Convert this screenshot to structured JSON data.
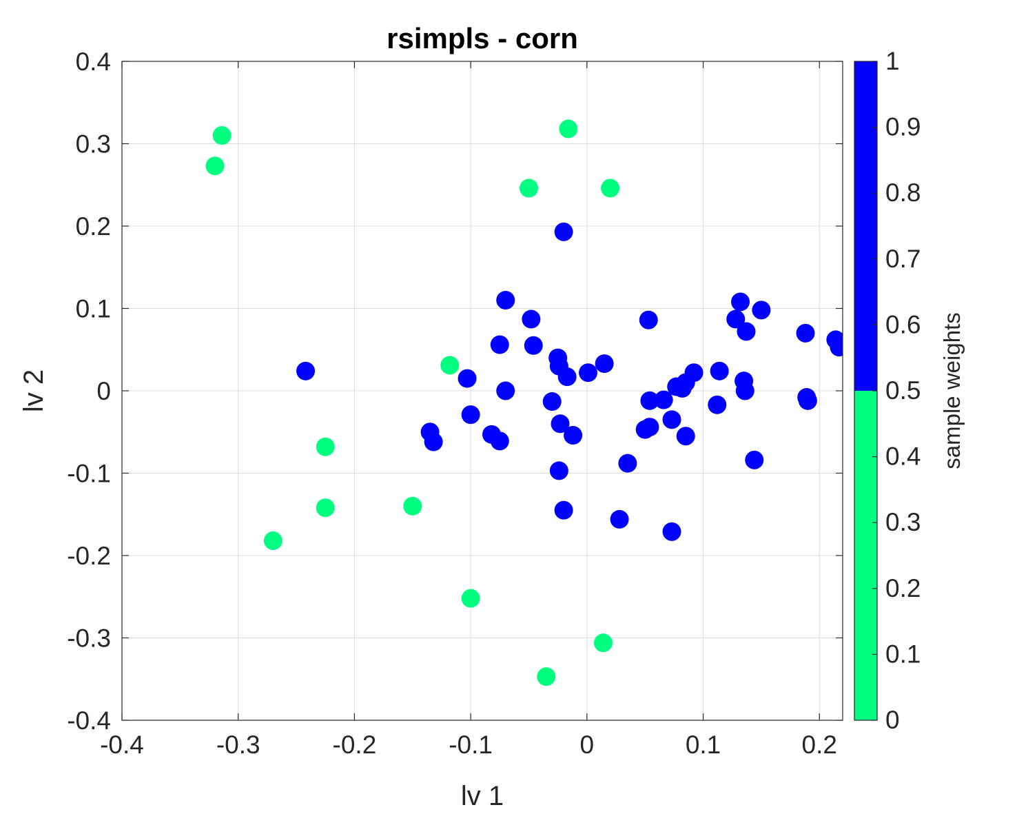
{
  "chart_data": {
    "type": "scatter",
    "title": "rsimpls - corn",
    "xlabel": "lv 1",
    "ylabel": "lv 2",
    "xlim": [
      -0.4,
      0.22
    ],
    "ylim": [
      -0.4,
      0.4
    ],
    "xticks": [
      -0.4,
      -0.3,
      -0.2,
      -0.1,
      0,
      0.1,
      0.2
    ],
    "yticks": [
      -0.4,
      -0.3,
      -0.2,
      -0.1,
      0,
      0.1,
      0.2,
      0.3,
      0.4
    ],
    "xtick_labels": [
      "-0.4",
      "-0.3",
      "-0.2",
      "-0.1",
      "0",
      "0.1",
      "0.2"
    ],
    "ytick_labels": [
      "-0.4",
      "-0.3",
      "-0.2",
      "-0.1",
      "0",
      "0.1",
      "0.2",
      "0.3",
      "0.4"
    ],
    "grid": true,
    "colorbar": {
      "label": "sample weights",
      "range": [
        0,
        1
      ],
      "ticks": [
        0,
        0.1,
        0.2,
        0.3,
        0.4,
        0.5,
        0.6,
        0.7,
        0.8,
        0.9,
        1
      ],
      "tick_labels": [
        "0",
        "0.1",
        "0.2",
        "0.3",
        "0.4",
        "0.5",
        "0.6",
        "0.7",
        "0.8",
        "0.9",
        "1"
      ],
      "segments": [
        {
          "from": 0,
          "to": 0.5,
          "color": "#00ff80"
        },
        {
          "from": 0.5,
          "to": 1,
          "color": "#0000ff"
        }
      ]
    },
    "colors": {
      "weight_0": "#00ff80",
      "weight_1": "#0000ff"
    },
    "points": [
      {
        "x": -0.32,
        "y": 0.273,
        "w": 0
      },
      {
        "x": -0.314,
        "y": 0.31,
        "w": 0
      },
      {
        "x": -0.016,
        "y": 0.318,
        "w": 0
      },
      {
        "x": -0.05,
        "y": 0.246,
        "w": 0
      },
      {
        "x": 0.02,
        "y": 0.246,
        "w": 0
      },
      {
        "x": -0.118,
        "y": 0.031,
        "w": 0
      },
      {
        "x": -0.225,
        "y": -0.068,
        "w": 0
      },
      {
        "x": -0.225,
        "y": -0.142,
        "w": 0
      },
      {
        "x": -0.15,
        "y": -0.14,
        "w": 0
      },
      {
        "x": -0.27,
        "y": -0.182,
        "w": 0
      },
      {
        "x": -0.1,
        "y": -0.252,
        "w": 0
      },
      {
        "x": 0.014,
        "y": -0.306,
        "w": 0
      },
      {
        "x": -0.035,
        "y": -0.347,
        "w": 0
      },
      {
        "x": -0.02,
        "y": 0.193,
        "w": 1
      },
      {
        "x": -0.242,
        "y": 0.024,
        "w": 1
      },
      {
        "x": -0.07,
        "y": 0.11,
        "w": 1
      },
      {
        "x": -0.048,
        "y": 0.087,
        "w": 1
      },
      {
        "x": -0.075,
        "y": 0.056,
        "w": 1
      },
      {
        "x": -0.046,
        "y": 0.055,
        "w": 1
      },
      {
        "x": -0.025,
        "y": 0.04,
        "w": 1
      },
      {
        "x": -0.024,
        "y": 0.03,
        "w": 1
      },
      {
        "x": -0.017,
        "y": 0.017,
        "w": 1
      },
      {
        "x": 0.001,
        "y": 0.022,
        "w": 1
      },
      {
        "x": 0.015,
        "y": 0.033,
        "w": 1
      },
      {
        "x": -0.103,
        "y": 0.015,
        "w": 1
      },
      {
        "x": -0.07,
        "y": 0.0,
        "w": 1
      },
      {
        "x": -0.1,
        "y": -0.029,
        "w": 1
      },
      {
        "x": -0.135,
        "y": -0.05,
        "w": 1
      },
      {
        "x": -0.132,
        "y": -0.062,
        "w": 1
      },
      {
        "x": -0.082,
        "y": -0.053,
        "w": 1
      },
      {
        "x": -0.075,
        "y": -0.061,
        "w": 1
      },
      {
        "x": -0.03,
        "y": -0.013,
        "w": 1
      },
      {
        "x": -0.023,
        "y": -0.04,
        "w": 1
      },
      {
        "x": -0.012,
        "y": -0.054,
        "w": 1
      },
      {
        "x": -0.024,
        "y": -0.097,
        "w": 1
      },
      {
        "x": -0.02,
        "y": -0.145,
        "w": 1
      },
      {
        "x": 0.035,
        "y": -0.088,
        "w": 1
      },
      {
        "x": 0.028,
        "y": -0.156,
        "w": 1
      },
      {
        "x": 0.073,
        "y": -0.171,
        "w": 1
      },
      {
        "x": 0.053,
        "y": 0.086,
        "w": 1
      },
      {
        "x": 0.054,
        "y": -0.012,
        "w": 1
      },
      {
        "x": 0.066,
        "y": -0.011,
        "w": 1
      },
      {
        "x": 0.05,
        "y": -0.047,
        "w": 1
      },
      {
        "x": 0.054,
        "y": -0.044,
        "w": 1
      },
      {
        "x": 0.073,
        "y": -0.035,
        "w": 1
      },
      {
        "x": 0.085,
        "y": -0.055,
        "w": 1
      },
      {
        "x": 0.077,
        "y": 0.005,
        "w": 1
      },
      {
        "x": 0.082,
        "y": 0.003,
        "w": 1
      },
      {
        "x": 0.085,
        "y": 0.01,
        "w": 1
      },
      {
        "x": 0.092,
        "y": 0.022,
        "w": 1
      },
      {
        "x": 0.114,
        "y": 0.024,
        "w": 1
      },
      {
        "x": 0.112,
        "y": -0.017,
        "w": 1
      },
      {
        "x": 0.132,
        "y": 0.108,
        "w": 1
      },
      {
        "x": 0.128,
        "y": 0.087,
        "w": 1
      },
      {
        "x": 0.137,
        "y": 0.072,
        "w": 1
      },
      {
        "x": 0.15,
        "y": 0.098,
        "w": 1
      },
      {
        "x": 0.135,
        "y": 0.012,
        "w": 1
      },
      {
        "x": 0.136,
        "y": 0.0,
        "w": 1
      },
      {
        "x": 0.144,
        "y": -0.084,
        "w": 1
      },
      {
        "x": 0.188,
        "y": 0.07,
        "w": 1
      },
      {
        "x": 0.189,
        "y": -0.008,
        "w": 1
      },
      {
        "x": 0.19,
        "y": -0.012,
        "w": 1
      },
      {
        "x": 0.214,
        "y": 0.062,
        "w": 1
      },
      {
        "x": 0.217,
        "y": 0.053,
        "w": 1
      }
    ]
  }
}
